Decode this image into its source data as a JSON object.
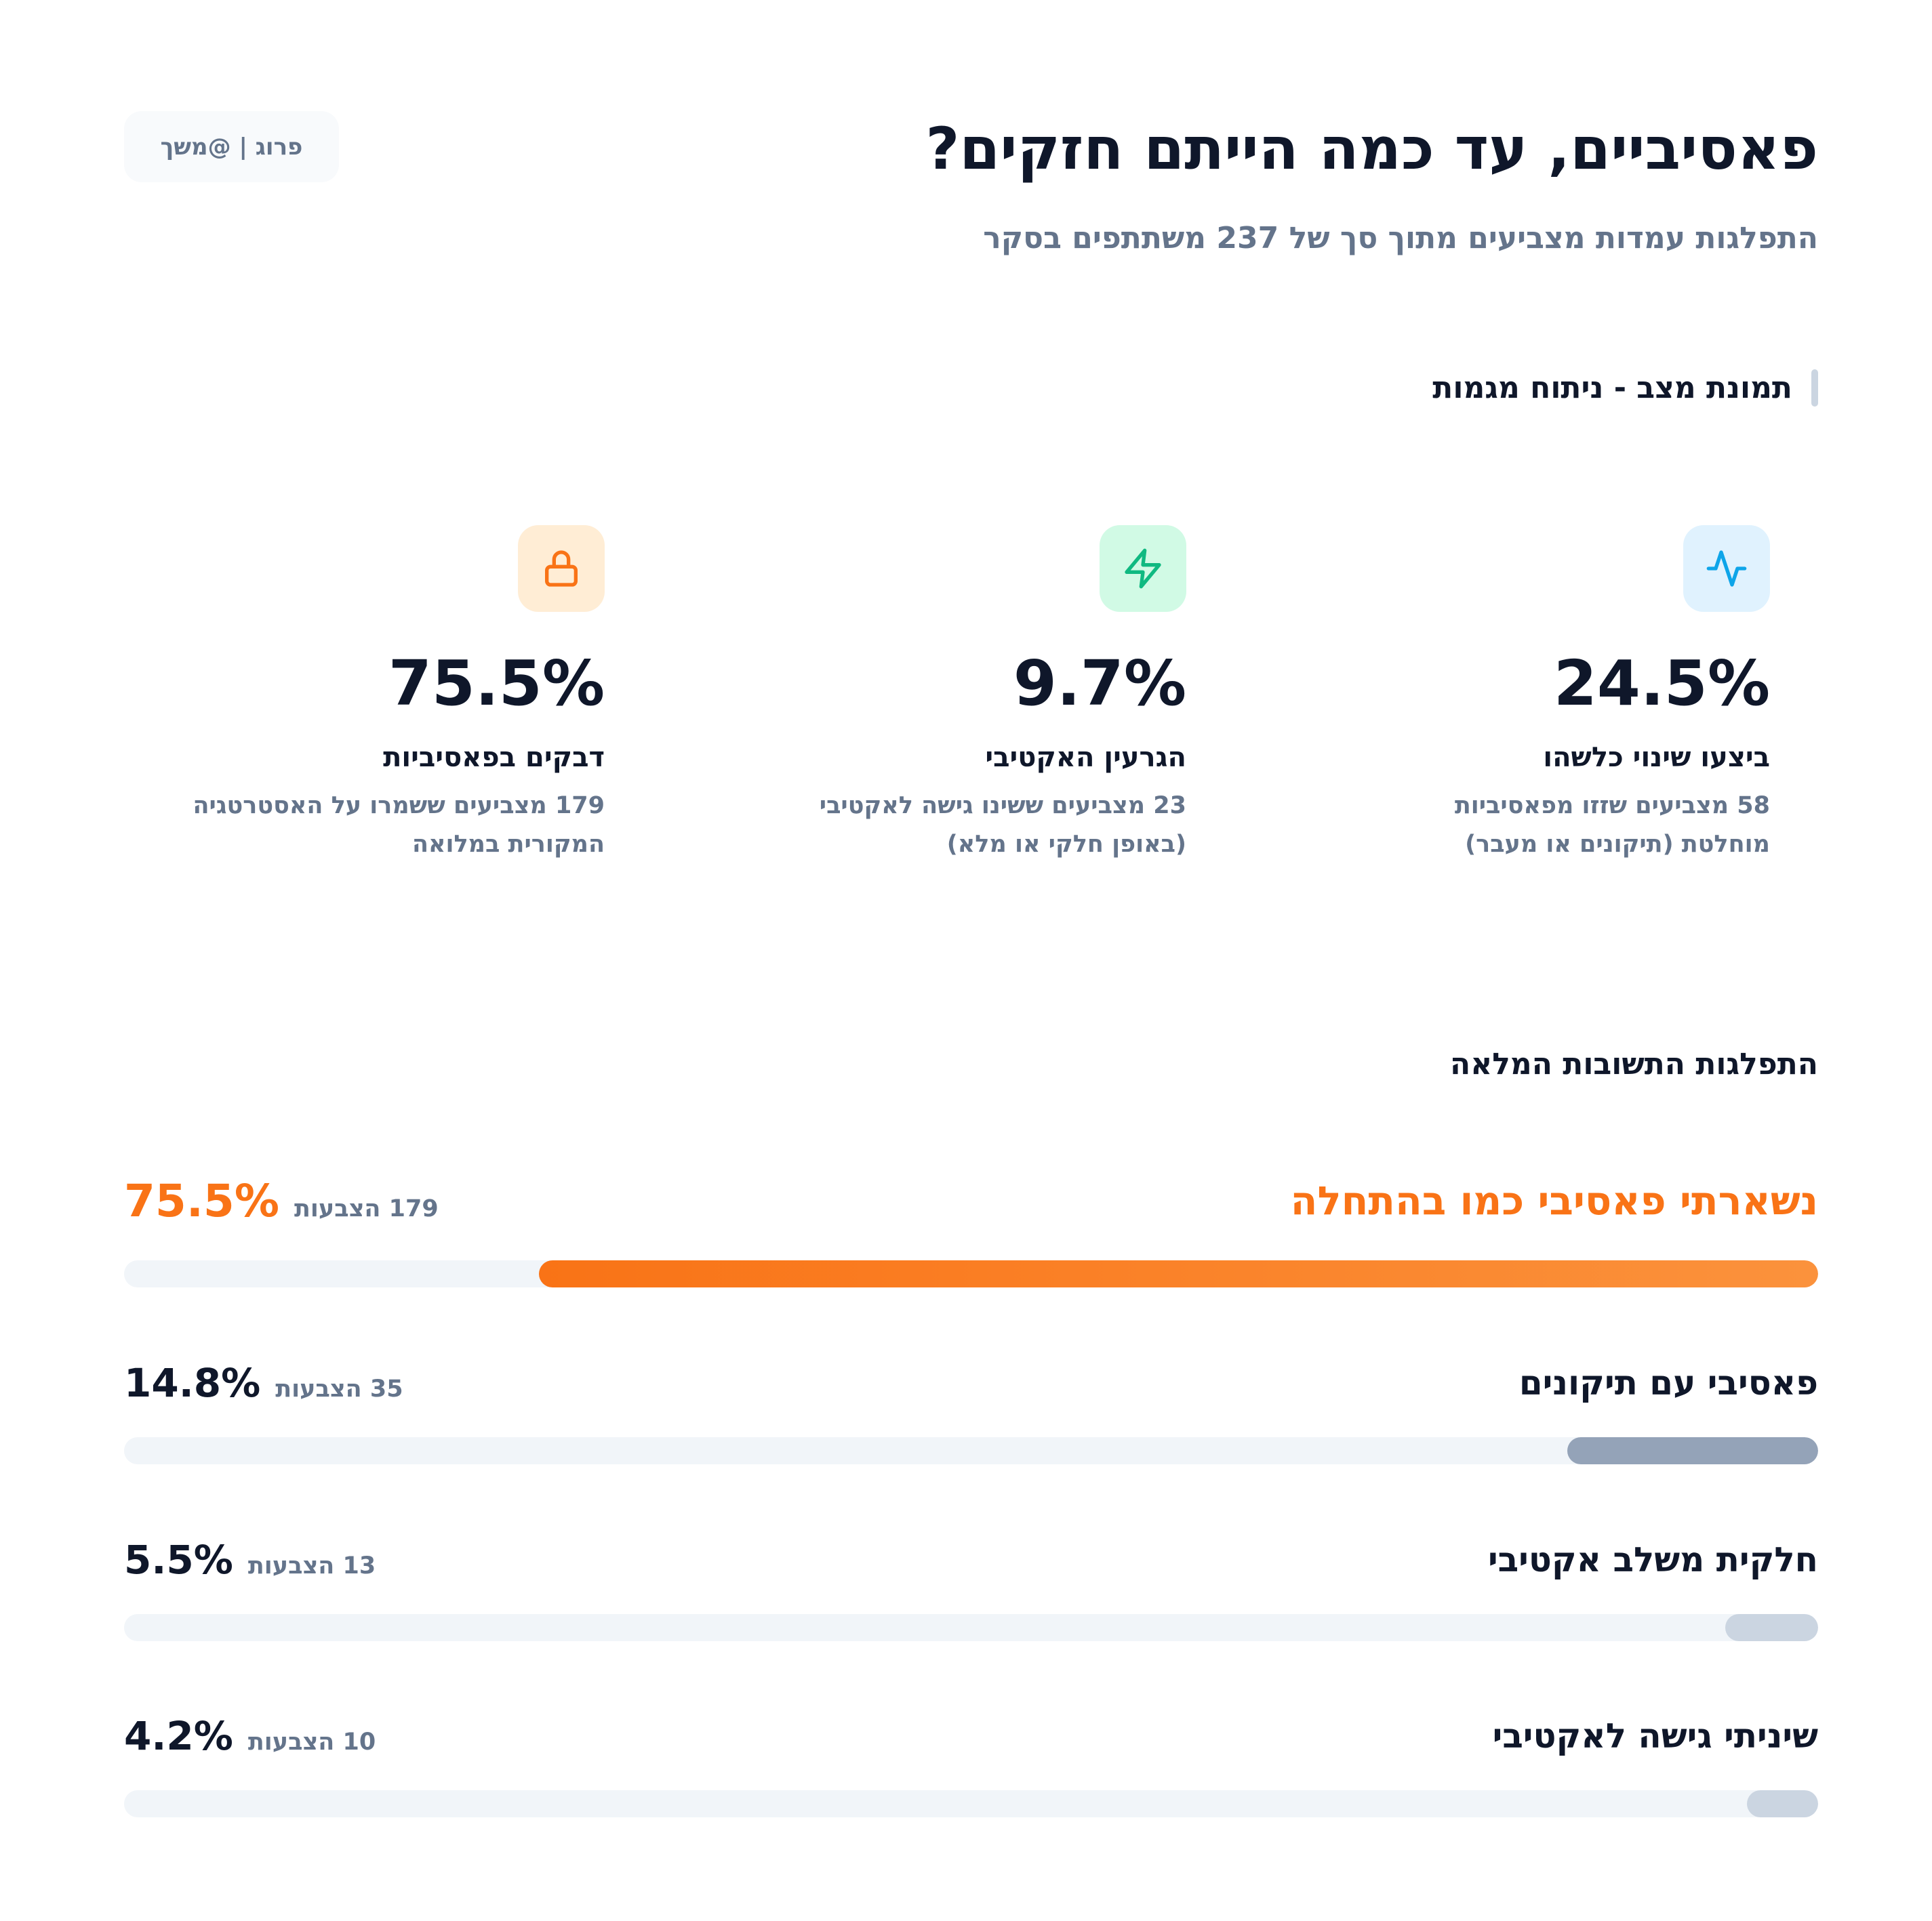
{
  "badge": "פרוג | @משך",
  "title": "פאסיביים, עד כמה הייתם חזקים?",
  "subtitle": "התפלגות עמדות מצביעים מתוך סך של 237 משתתפים בסקר",
  "section_snapshot": "תמונת מצב - ניתוח מגמות",
  "cards": [
    {
      "icon": "activity-icon",
      "value": "24.5%",
      "label": "ביצעו שינוי כלשהו",
      "desc": "58 מצביעים שזזו מפאסיביות\nמוחלטת (תיקונים או מעבר)",
      "bg": "#e0f2fe",
      "color": "#0ea5e9"
    },
    {
      "icon": "lightning-icon",
      "value": "9.7%",
      "label": "הגרעין האקטיבי",
      "desc": "23 מצביעים ששינו גישה לאקטיבי\n(באופן חלקי או מלא)",
      "bg": "#d1fae5",
      "color": "#10b981"
    },
    {
      "icon": "lock-icon",
      "value": "75.5%",
      "label": "דבקים בפאסיביות",
      "desc": "179 מצביעים ששמרו על האסטרטגיה\nהמקורית במלואה",
      "bg": "#ffedd5",
      "color": "#f97316"
    }
  ],
  "section_distribution": "התפלגות התשובות המלאה",
  "rows": [
    {
      "label": "נשארתי פאסיבי כמו בהתחלה",
      "count": "179 הצבעות",
      "pct": "75.5%",
      "value": 75.5,
      "highlight": true
    },
    {
      "label": "פאסיבי עם תיקונים",
      "count": "35 הצבעות",
      "pct": "14.8%",
      "value": 14.8
    },
    {
      "label": "חלקית משלב אקטיבי",
      "count": "13 הצבעות",
      "pct": "5.5%",
      "value": 5.5
    },
    {
      "label": "שיניתי גישה לאקטיבי",
      "count": "10 הצבעות",
      "pct": "4.2%",
      "value": 4.2
    }
  ],
  "colors": {
    "accent": "#f97316",
    "dark": "#0f172a",
    "muted": "#64748b",
    "bar2": "#94a3b8",
    "bar_light": "#cbd5e1",
    "track": "#f1f5f9"
  }
}
